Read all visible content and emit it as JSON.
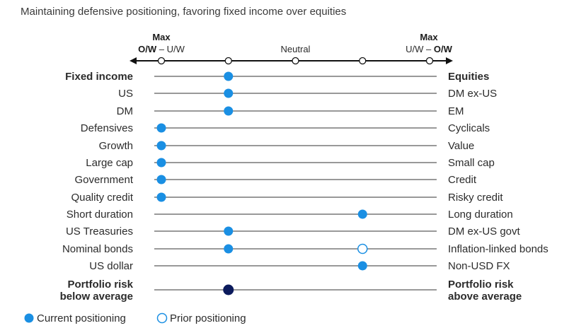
{
  "chart_data": {
    "type": "scatter",
    "title": "Maintaining defensive positioning, favoring fixed income over equities",
    "scale": {
      "positions": [
        1,
        2,
        3,
        4,
        5
      ],
      "left_end": {
        "line1": "Max",
        "line2_a": "O/W",
        "line2_sep": " – ",
        "line2_b": "U/W"
      },
      "center": "Neutral",
      "right_end": {
        "line1": "Max",
        "line2_a": "U/W",
        "line2_sep": " – ",
        "line2_b": "O/W"
      }
    },
    "rows": [
      {
        "left": [
          "Fixed income"
        ],
        "right": [
          "Equities"
        ],
        "bold": true,
        "current": 2,
        "prior": null
      },
      {
        "left": [
          "US"
        ],
        "right": [
          "DM ex-US"
        ],
        "bold": false,
        "current": 2,
        "prior": null
      },
      {
        "left": [
          "DM"
        ],
        "right": [
          "EM"
        ],
        "bold": false,
        "current": 2,
        "prior": null
      },
      {
        "left": [
          "Defensives"
        ],
        "right": [
          "Cyclicals"
        ],
        "bold": false,
        "current": 1,
        "prior": null
      },
      {
        "left": [
          "Growth"
        ],
        "right": [
          "Value"
        ],
        "bold": false,
        "current": 1,
        "prior": null
      },
      {
        "left": [
          "Large cap"
        ],
        "right": [
          "Small cap"
        ],
        "bold": false,
        "current": 1,
        "prior": null
      },
      {
        "left": [
          "Government"
        ],
        "right": [
          "Credit"
        ],
        "bold": false,
        "current": 1,
        "prior": null
      },
      {
        "left": [
          "Quality credit"
        ],
        "right": [
          "Risky credit"
        ],
        "bold": false,
        "current": 1,
        "prior": null
      },
      {
        "left": [
          "Short duration"
        ],
        "right": [
          "Long duration"
        ],
        "bold": false,
        "current": 4,
        "prior": null
      },
      {
        "left": [
          "US Treasuries"
        ],
        "right": [
          "DM ex-US govt"
        ],
        "bold": false,
        "current": 2,
        "prior": null
      },
      {
        "left": [
          "Nominal bonds"
        ],
        "right": [
          "Inflation-linked bonds"
        ],
        "bold": false,
        "current": 2,
        "prior": 4
      },
      {
        "left": [
          "US dollar"
        ],
        "right": [
          "Non-USD FX"
        ],
        "bold": false,
        "current": 4,
        "prior": null
      },
      {
        "left": [
          "Portfolio risk",
          "below average"
        ],
        "right": [
          "Portfolio risk",
          "above average"
        ],
        "bold": true,
        "current": 2,
        "prior": null,
        "highlight": true
      }
    ],
    "legend": [
      {
        "type": "current",
        "label": "Current positioning"
      },
      {
        "type": "prior",
        "label": "Prior positioning"
      }
    ],
    "colors": {
      "current": "#1a8fe3",
      "prior_stroke": "#1a8fe3",
      "highlight": "#0b1a5c",
      "line": "#333333",
      "axis": "#111111"
    }
  }
}
